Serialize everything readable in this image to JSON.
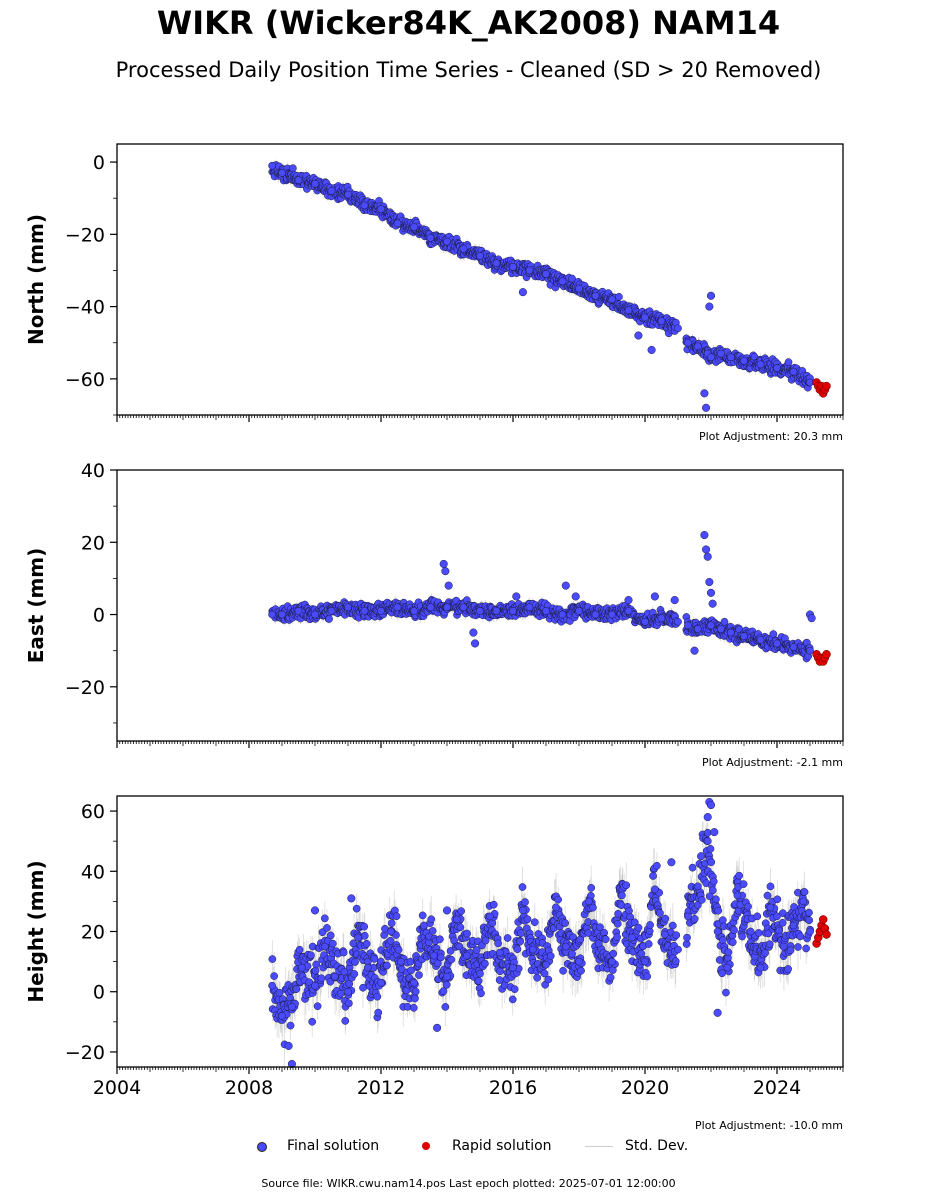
{
  "title": "WIKR (Wicker84K_AK2008) NAM14",
  "subtitle": "Processed Daily Position Time Series - Cleaned (SD > 20 Removed)",
  "legend": {
    "final_label": "Final solution",
    "rapid_label": "Rapid solution",
    "std_label": "Std. Dev."
  },
  "colors": {
    "final": "#4a4aff",
    "rapid": "#e00000",
    "std_dev": "#bbbbbb"
  },
  "footer": {
    "source": "Source file: WIKR.cwu.nam14.pos  Last epoch plotted: 2025-07-01 12:00:00"
  },
  "chart_data": [
    {
      "type": "scatter",
      "ylabel": "North (mm)",
      "adjustment": "Plot Adjustment: 20.3 mm",
      "xlim": [
        2004,
        2026
      ],
      "ylim": [
        -70,
        5
      ],
      "yticks": [
        0,
        -20,
        -40,
        -60
      ],
      "ytick_labels": [
        "0",
        "−20",
        "−40",
        "−60"
      ],
      "grid": false,
      "series": [
        {
          "name": "Final solution",
          "x": [
            2008.7,
            2009.0,
            2009.5,
            2010.0,
            2010.5,
            2011.0,
            2011.5,
            2012.0,
            2012.5,
            2013.0,
            2013.5,
            2014.0,
            2014.5,
            2015.0,
            2015.5,
            2016.0,
            2016.5,
            2017.0,
            2017.5,
            2018.0,
            2018.5,
            2019.0,
            2019.5,
            2020.0,
            2020.5,
            2021.0,
            2021.3,
            2021.6,
            2021.9,
            2022.0,
            2022.3,
            2022.6,
            2023.0,
            2023.5,
            2024.0,
            2024.5,
            2025.0
          ],
          "y": [
            -1,
            -3,
            -5,
            -6,
            -8,
            -9,
            -12,
            -13,
            -17,
            -18,
            -21,
            -22,
            -24,
            -26,
            -28,
            -29,
            -30,
            -31,
            -33,
            -35,
            -37,
            -38,
            -41,
            -43,
            -44,
            -46,
            -50,
            -51,
            -53,
            -54,
            -53,
            -54,
            -55,
            -56,
            -57,
            -58,
            -61
          ]
        },
        {
          "name": "Rapid solution",
          "x": [
            2025.2,
            2025.25,
            2025.3,
            2025.35,
            2025.4,
            2025.45,
            2025.5
          ],
          "y": [
            -61,
            -62,
            -63,
            -62,
            -64,
            -63,
            -62
          ]
        }
      ],
      "outliers": {
        "x": [
          2016.3,
          2019.8,
          2020.2,
          2021.8,
          2021.85,
          2021.95,
          2022.0
        ],
        "y": [
          -36,
          -48,
          -52,
          -64,
          -68,
          -40,
          -37
        ]
      }
    },
    {
      "type": "scatter",
      "ylabel": "East (mm)",
      "adjustment": "Plot Adjustment: -2.1 mm",
      "xlim": [
        2004,
        2026
      ],
      "ylim": [
        -35,
        40
      ],
      "yticks": [
        40,
        20,
        0,
        -20
      ],
      "ytick_labels": [
        "40",
        "20",
        "0",
        "−20"
      ],
      "grid": false,
      "series": [
        {
          "name": "Final solution",
          "x": [
            2008.7,
            2009.0,
            2009.5,
            2010.0,
            2010.5,
            2011.0,
            2011.5,
            2012.0,
            2012.5,
            2013.0,
            2013.5,
            2014.0,
            2014.5,
            2015.0,
            2015.5,
            2016.0,
            2016.5,
            2017.0,
            2017.5,
            2018.0,
            2018.5,
            2019.0,
            2019.5,
            2020.0,
            2020.5,
            2021.0,
            2021.3,
            2021.6,
            2022.0,
            2022.3,
            2022.6,
            2023.0,
            2023.5,
            2024.0,
            2024.5,
            2025.0
          ],
          "y": [
            0,
            0,
            1,
            0,
            1,
            2,
            1,
            1,
            2,
            1,
            2,
            2,
            2,
            1,
            1,
            1,
            2,
            1,
            0,
            1,
            0,
            0,
            1,
            -2,
            -1,
            -2,
            -3,
            -4,
            -3,
            -4,
            -5,
            -6,
            -7,
            -8,
            -9,
            -10
          ]
        },
        {
          "name": "Rapid solution",
          "x": [
            2025.2,
            2025.25,
            2025.3,
            2025.35,
            2025.4,
            2025.45,
            2025.5
          ],
          "y": [
            -11,
            -12,
            -13,
            -12,
            -13,
            -12,
            -11
          ]
        }
      ],
      "outliers": {
        "x": [
          2013.9,
          2013.95,
          2014.05,
          2014.8,
          2014.85,
          2016.1,
          2017.6,
          2017.9,
          2019.5,
          2020.3,
          2020.9,
          2021.5,
          2021.8,
          2021.85,
          2021.9,
          2021.95,
          2022.0,
          2022.05,
          2025.0,
          2025.05
        ],
        "y": [
          14,
          12,
          8,
          -5,
          -8,
          5,
          8,
          5,
          4,
          5,
          4,
          -10,
          22,
          18,
          16,
          9,
          6,
          3,
          0,
          -1
        ]
      }
    },
    {
      "type": "scatter",
      "ylabel": "Height (mm)",
      "adjustment": "Plot Adjustment: -10.0 mm",
      "xlim": [
        2004,
        2026
      ],
      "ylim": [
        -25,
        65
      ],
      "yticks": [
        60,
        40,
        20,
        0,
        -20
      ],
      "ytick_labels": [
        "60",
        "40",
        "20",
        "0",
        "−20"
      ],
      "xticks": [
        2004,
        2008,
        2012,
        2016,
        2020,
        2024
      ],
      "xtick_labels": [
        "2004",
        "2008",
        "2012",
        "2016",
        "2020",
        "2024"
      ],
      "grid": false,
      "series": [
        {
          "name": "Final solution",
          "x": [
            2008.7,
            2009.0,
            2009.3,
            2009.6,
            2010.0,
            2010.3,
            2010.6,
            2011.0,
            2011.3,
            2011.6,
            2012.0,
            2012.3,
            2012.6,
            2013.0,
            2013.3,
            2013.6,
            2014.0,
            2014.3,
            2014.6,
            2015.0,
            2015.3,
            2015.6,
            2016.0,
            2016.3,
            2016.6,
            2017.0,
            2017.3,
            2017.6,
            2018.0,
            2018.3,
            2018.6,
            2019.0,
            2019.3,
            2019.6,
            2020.0,
            2020.3,
            2020.6,
            2021.0,
            2021.3,
            2021.6,
            2021.9,
            2022.2,
            2022.5,
            2022.8,
            2023.2,
            2023.5,
            2023.8,
            2024.2,
            2024.5,
            2024.8,
            2025.0
          ],
          "y": [
            2,
            -8,
            -5,
            8,
            2,
            15,
            5,
            0,
            18,
            8,
            3,
            20,
            10,
            3,
            22,
            12,
            5,
            24,
            12,
            6,
            25,
            13,
            8,
            27,
            14,
            9,
            28,
            15,
            10,
            30,
            16,
            10,
            32,
            18,
            10,
            34,
            19,
            14,
            25,
            35,
            50,
            20,
            8,
            32,
            20,
            8,
            28,
            15,
            22,
            30,
            20
          ]
        },
        {
          "name": "Rapid solution",
          "x": [
            2025.2,
            2025.25,
            2025.3,
            2025.35,
            2025.4,
            2025.45,
            2025.5
          ],
          "y": [
            16,
            18,
            20,
            22,
            24,
            21,
            19
          ]
        }
      ],
      "outliers": {
        "x": [
          2009.2,
          2009.3,
          2010.0,
          2011.1,
          2013.7,
          2014.0,
          2020.8,
          2021.7,
          2021.9,
          2021.95,
          2022.0,
          2022.1,
          2022.2
        ],
        "y": [
          -18,
          -24,
          27,
          31,
          -12,
          27,
          43,
          45,
          58,
          63,
          62,
          53,
          -7
        ]
      }
    }
  ]
}
